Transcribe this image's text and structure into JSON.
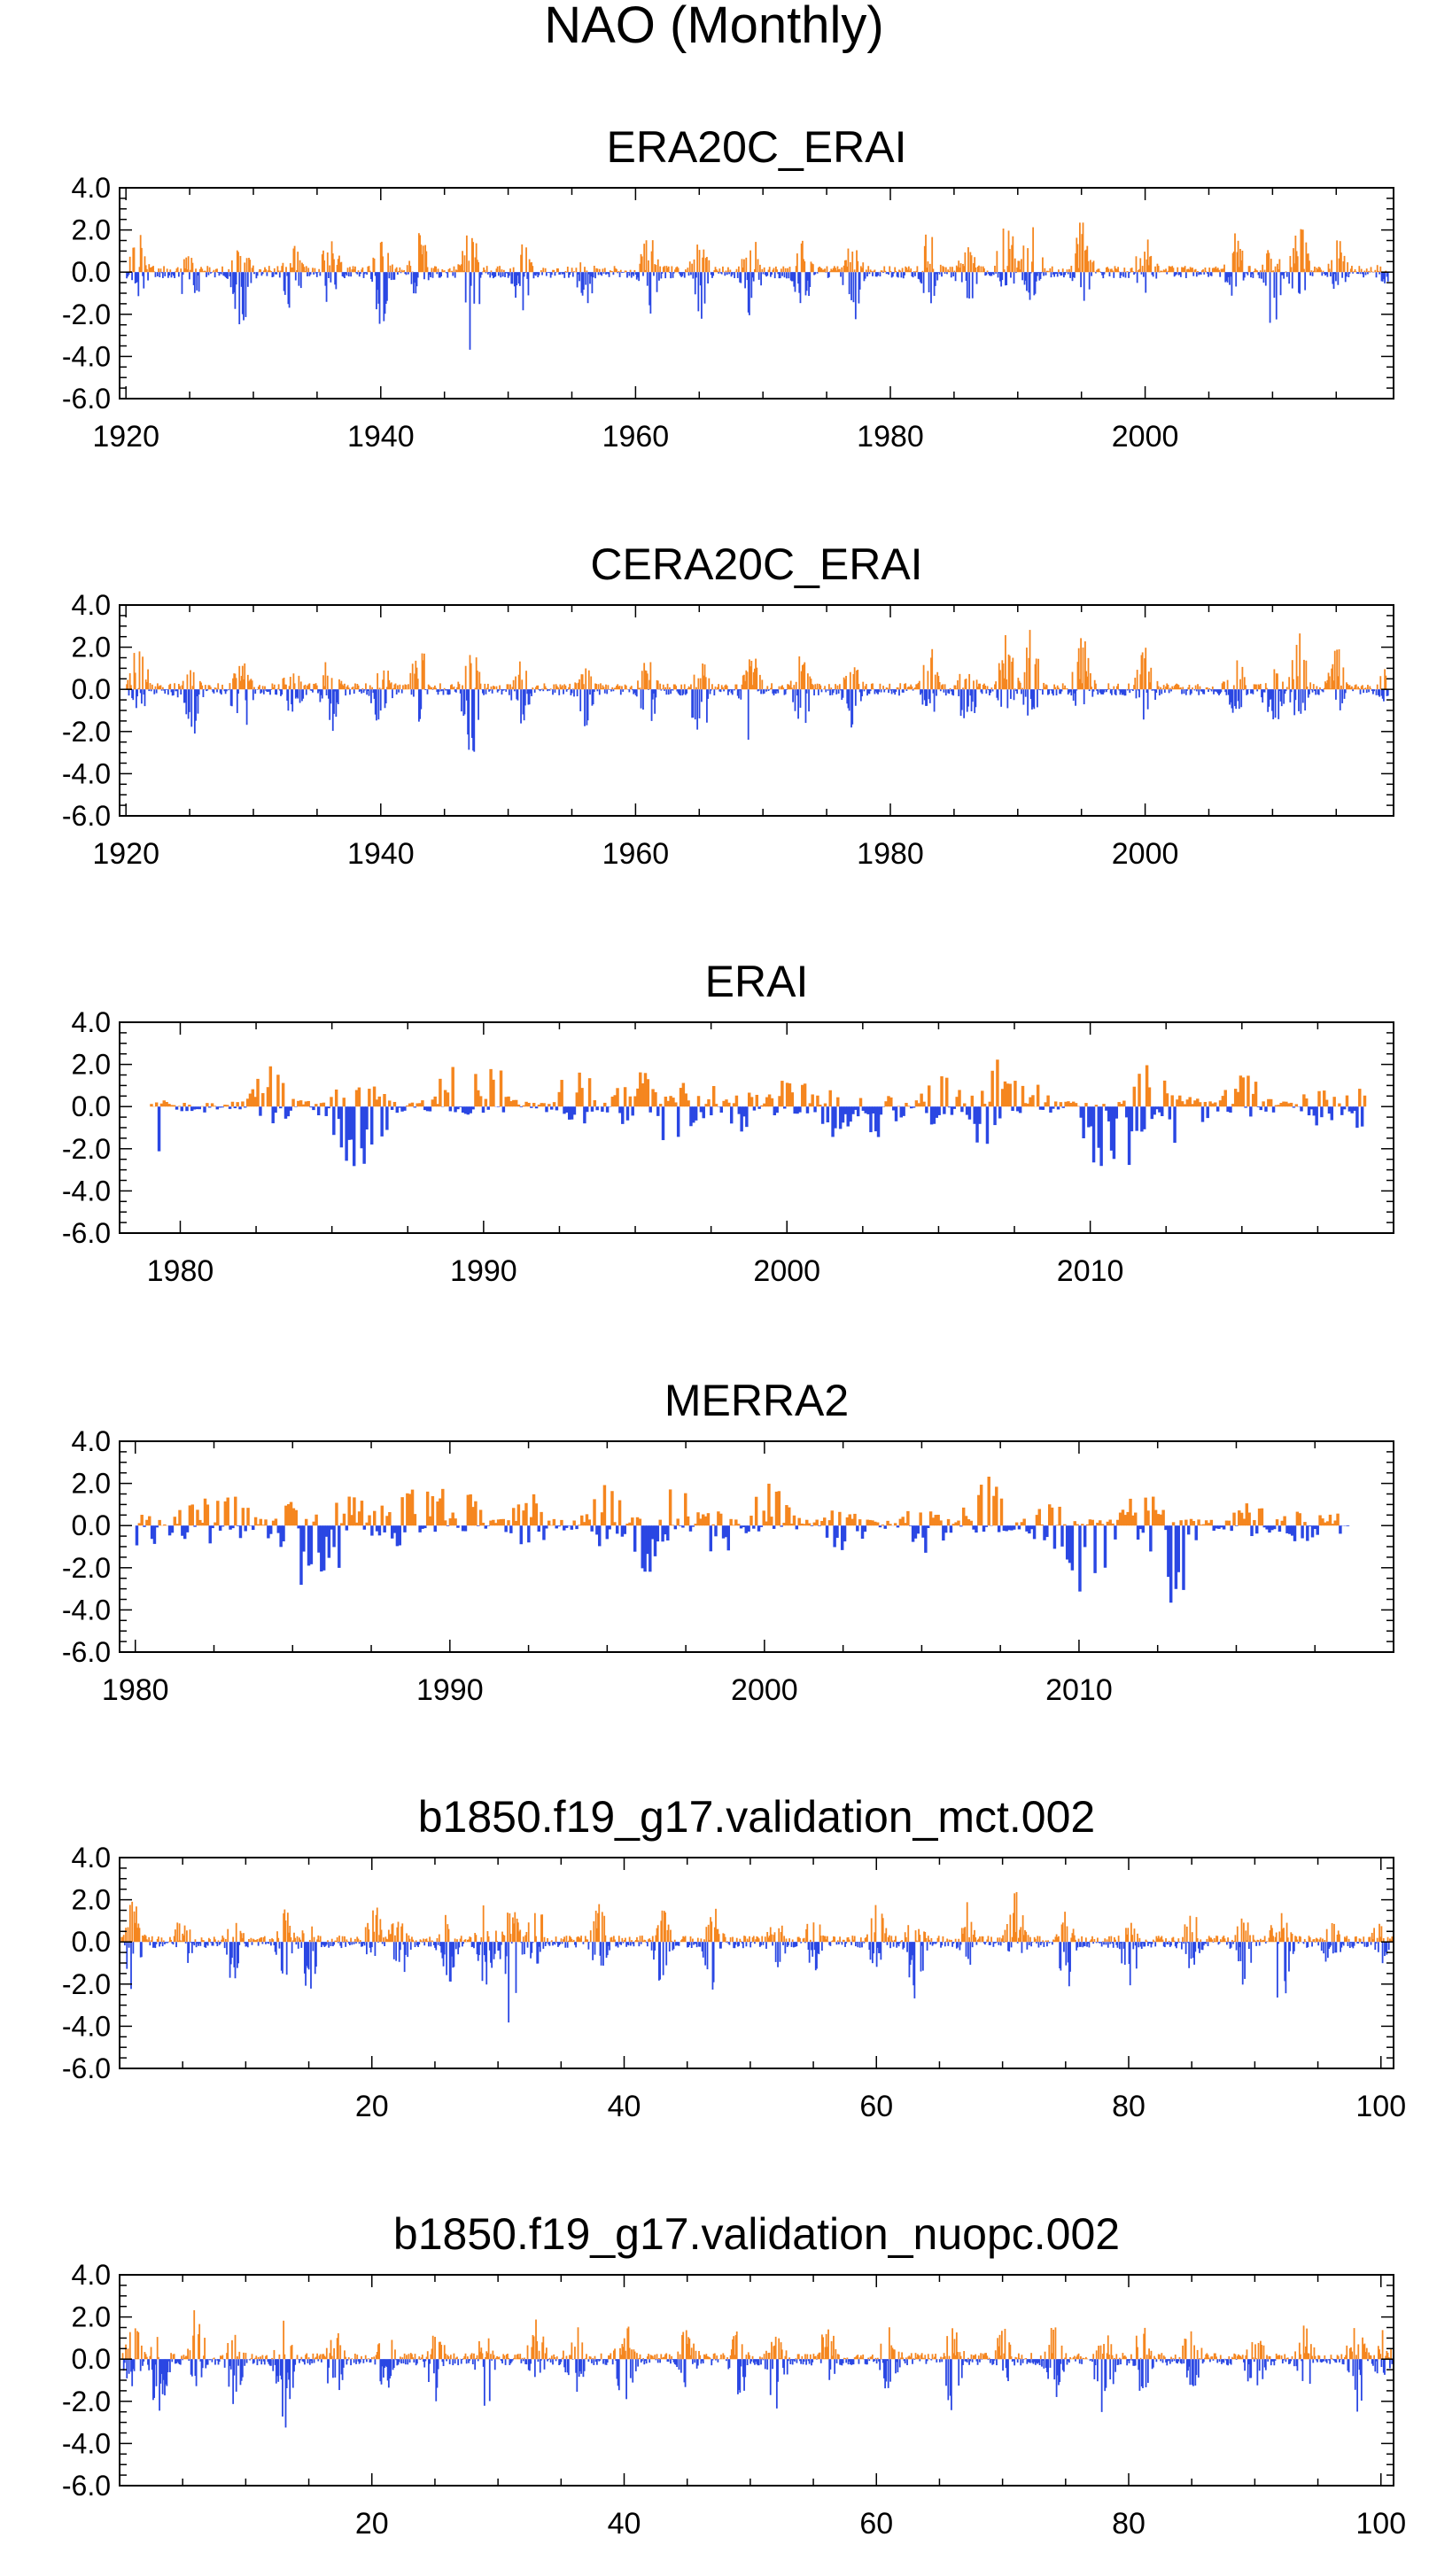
{
  "figure_title": "NAO (Monthly)",
  "colors": {
    "positive": "#f5861f",
    "negative": "#2a47e3",
    "axis": "#000000"
  },
  "chart_data": [
    {
      "type": "bar",
      "title": "ERA20C_ERAI",
      "xlabel": "",
      "ylabel": "",
      "ylim": [
        -6.0,
        4.0
      ],
      "yticks": [
        "4.0",
        "2.0",
        "0.0",
        "-2.0",
        "-4.0",
        "-6.0"
      ],
      "xlim": [
        1919.5,
        2019.5
      ],
      "xticks": [
        1920,
        1940,
        1960,
        1980,
        2000
      ],
      "x_start": 1920,
      "x_end": 2019,
      "series_resolution": "monthly (shown as annual-envelope sample)",
      "peaks": [
        [
          1921,
          2.5,
          -1.2
        ],
        [
          1925,
          1.2,
          -2.4
        ],
        [
          1929,
          1.6,
          -2.9
        ],
        [
          1933,
          1.4,
          -2.0
        ],
        [
          1936,
          1.9,
          -2.1
        ],
        [
          1940,
          1.5,
          -2.6
        ],
        [
          1943,
          2.1,
          -1.7
        ],
        [
          1947,
          2.2,
          -3.8
        ],
        [
          1951,
          1.7,
          -1.9
        ],
        [
          1956,
          1.4,
          -1.8
        ],
        [
          1961,
          1.8,
          -2.1
        ],
        [
          1965,
          1.6,
          -2.4
        ],
        [
          1969,
          2.0,
          -2.9
        ],
        [
          1973,
          1.7,
          -2.0
        ],
        [
          1977,
          1.6,
          -2.5
        ],
        [
          1983,
          2.1,
          -1.6
        ],
        [
          1986,
          1.5,
          -2.2
        ],
        [
          1989,
          3.1,
          -1.2
        ],
        [
          1991,
          3.0,
          -1.5
        ],
        [
          1995,
          2.7,
          -1.5
        ],
        [
          2000,
          2.2,
          -1.6
        ],
        [
          2007,
          2.0,
          -1.4
        ],
        [
          2010,
          1.5,
          -2.9
        ],
        [
          2012,
          2.7,
          -1.7
        ],
        [
          2015,
          2.0,
          -1.2
        ],
        [
          2019,
          1.3,
          -0.8
        ]
      ]
    },
    {
      "type": "bar",
      "title": "CERA20C_ERAI",
      "xlabel": "",
      "ylabel": "",
      "ylim": [
        -6.0,
        4.0
      ],
      "yticks": [
        "4.0",
        "2.0",
        "0.0",
        "-2.0",
        "-4.0",
        "-6.0"
      ],
      "xlim": [
        1919.5,
        2019.5
      ],
      "xticks": [
        1920,
        1940,
        1960,
        1980,
        2000
      ],
      "x_start": 1920,
      "x_end": 2019,
      "series_resolution": "monthly (shown as annual-envelope sample)",
      "peaks": [
        [
          1921,
          2.4,
          -1.2
        ],
        [
          1925,
          1.3,
          -2.6
        ],
        [
          1929,
          1.6,
          -2.8
        ],
        [
          1933,
          1.4,
          -2.0
        ],
        [
          1936,
          1.8,
          -2.1
        ],
        [
          1940,
          1.5,
          -2.6
        ],
        [
          1943,
          2.2,
          -1.7
        ],
        [
          1947,
          2.2,
          -3.7
        ],
        [
          1951,
          1.7,
          -1.9
        ],
        [
          1956,
          1.4,
          -1.8
        ],
        [
          1961,
          1.8,
          -2.1
        ],
        [
          1965,
          1.6,
          -3.0
        ],
        [
          1969,
          2.0,
          -2.8
        ],
        [
          1973,
          1.7,
          -2.0
        ],
        [
          1977,
          1.6,
          -2.5
        ],
        [
          1983,
          2.1,
          -1.6
        ],
        [
          1986,
          1.5,
          -2.2
        ],
        [
          1989,
          3.1,
          -1.2
        ],
        [
          1991,
          3.0,
          -1.5
        ],
        [
          1995,
          2.6,
          -1.5
        ],
        [
          2000,
          2.2,
          -1.6
        ],
        [
          2007,
          2.0,
          -1.4
        ],
        [
          2010,
          1.5,
          -3.0
        ],
        [
          2012,
          2.7,
          -1.8
        ],
        [
          2015,
          2.1,
          -1.2
        ],
        [
          2019,
          1.4,
          -0.8
        ]
      ]
    },
    {
      "type": "bar",
      "title": "ERAI",
      "xlabel": "",
      "ylabel": "",
      "ylim": [
        -6.0,
        4.0
      ],
      "yticks": [
        "4.0",
        "2.0",
        "0.0",
        "-2.0",
        "-4.0",
        "-6.0"
      ],
      "xlim": [
        1978.0,
        2020.0
      ],
      "xticks": [
        1980,
        1990,
        2000,
        2010
      ],
      "x_start": 1979,
      "x_end": 2019,
      "series_resolution": "monthly",
      "peaks": [
        [
          1979.1,
          0.5,
          -2.3
        ],
        [
          1983.0,
          2.1,
          -0.8
        ],
        [
          1985.5,
          1.2,
          -3.0
        ],
        [
          1986.2,
          1.0,
          -3.1
        ],
        [
          1989.1,
          2.5,
          -0.5
        ],
        [
          1990.1,
          2.7,
          -0.3
        ],
        [
          1993.0,
          2.0,
          -1.0
        ],
        [
          1995.0,
          2.1,
          -1.5
        ],
        [
          1996.1,
          0.6,
          -2.5
        ],
        [
          1997.1,
          2.3,
          -0.6
        ],
        [
          1998.7,
          0.8,
          -1.6
        ],
        [
          2000.1,
          1.7,
          -0.4
        ],
        [
          2001.5,
          0.9,
          -1.5
        ],
        [
          2003.0,
          1.1,
          -1.5
        ],
        [
          2005.1,
          1.6,
          -1.2
        ],
        [
          2006.5,
          0.8,
          -2.0
        ],
        [
          2007.1,
          2.6,
          -0.4
        ],
        [
          2008.0,
          1.3,
          -0.6
        ],
        [
          2010.1,
          0.2,
          -3.6
        ],
        [
          2011.0,
          0.3,
          -3.4
        ],
        [
          2012.0,
          2.4,
          -0.8
        ],
        [
          2013.1,
          0.5,
          -3.6
        ],
        [
          2015.0,
          1.7,
          -0.6
        ],
        [
          2017.5,
          1.1,
          -1.0
        ],
        [
          2019.0,
          1.0,
          -1.2
        ]
      ]
    },
    {
      "type": "bar",
      "title": "MERRA2",
      "xlabel": "",
      "ylabel": "",
      "ylim": [
        -6.0,
        4.0
      ],
      "yticks": [
        "4.0",
        "2.0",
        "0.0",
        "-2.0",
        "-4.0",
        "-6.0"
      ],
      "xlim": [
        1979.5,
        2020.0
      ],
      "xticks": [
        1980,
        1990,
        2000,
        2010
      ],
      "x_start": 1980,
      "x_end": 2018.5,
      "series_resolution": "monthly",
      "peaks": [
        [
          1980.3,
          0.6,
          -1.3
        ],
        [
          1982.0,
          1.6,
          -1.7
        ],
        [
          1983.0,
          1.9,
          -0.8
        ],
        [
          1985.1,
          1.3,
          -2.9
        ],
        [
          1986.0,
          0.8,
          -2.9
        ],
        [
          1986.7,
          2.0,
          -0.6
        ],
        [
          1988.0,
          1.1,
          -1.4
        ],
        [
          1989.0,
          2.6,
          -0.4
        ],
        [
          1990.1,
          2.7,
          -0.3
        ],
        [
          1992.5,
          1.6,
          -1.1
        ],
        [
          1995.0,
          2.0,
          -1.2
        ],
        [
          1996.1,
          0.5,
          -2.4
        ],
        [
          1997.0,
          2.3,
          -0.5
        ],
        [
          1998.5,
          0.9,
          -1.6
        ],
        [
          2000.1,
          2.2,
          -0.3
        ],
        [
          2002.5,
          1.0,
          -1.5
        ],
        [
          2005.0,
          1.2,
          -1.5
        ],
        [
          2007.0,
          2.4,
          -0.5
        ],
        [
          2009.0,
          1.1,
          -1.2
        ],
        [
          2010.1,
          0.3,
          -3.6
        ],
        [
          2011.0,
          0.3,
          -3.4
        ],
        [
          2012.0,
          2.2,
          -0.9
        ],
        [
          2013.0,
          0.6,
          -4.0
        ],
        [
          2015.5,
          1.4,
          -0.6
        ],
        [
          2017.0,
          1.0,
          -0.8
        ],
        [
          2018.3,
          0.7,
          -0.5
        ]
      ]
    },
    {
      "type": "bar",
      "title": "b1850.f19_g17.validation_mct.002",
      "xlabel": "",
      "ylabel": "",
      "ylim": [
        -6.0,
        4.0
      ],
      "yticks": [
        "4.0",
        "2.0",
        "0.0",
        "-2.0",
        "-4.0",
        "-6.0"
      ],
      "xlim": [
        0.0,
        101.0
      ],
      "xticks": [
        20,
        40,
        60,
        80,
        100
      ],
      "x_start": 0.1,
      "x_end": 100.9,
      "series_resolution": "monthly (shown as annual-envelope sample)",
      "peaks": [
        [
          1,
          2.1,
          -2.4
        ],
        [
          5,
          1.5,
          -1.3
        ],
        [
          9,
          1.3,
          -2.1
        ],
        [
          13,
          1.7,
          -2.4
        ],
        [
          15,
          1.0,
          -2.8
        ],
        [
          20,
          2.4,
          -1.0
        ],
        [
          22,
          1.6,
          -2.6
        ],
        [
          26,
          1.5,
          -2.3
        ],
        [
          29,
          1.9,
          -2.2
        ],
        [
          31,
          1.7,
          -4.5
        ],
        [
          33,
          2.0,
          -1.2
        ],
        [
          38,
          1.8,
          -1.5
        ],
        [
          43,
          1.6,
          -2.3
        ],
        [
          47,
          1.7,
          -2.4
        ],
        [
          52,
          1.3,
          -1.9
        ],
        [
          55,
          1.8,
          -1.4
        ],
        [
          60,
          1.8,
          -1.6
        ],
        [
          63,
          1.6,
          -2.9
        ],
        [
          67,
          2.0,
          -1.5
        ],
        [
          71,
          2.4,
          -1.8
        ],
        [
          75,
          1.6,
          -2.3
        ],
        [
          80,
          1.5,
          -2.5
        ],
        [
          85,
          1.7,
          -1.5
        ],
        [
          89,
          1.3,
          -2.2
        ],
        [
          92,
          2.4,
          -3.6
        ],
        [
          96,
          1.2,
          -1.4
        ],
        [
          100,
          1.3,
          -1.2
        ]
      ]
    },
    {
      "type": "bar",
      "title": "b1850.f19_g17.validation_nuopc.002",
      "xlabel": "",
      "ylabel": "",
      "ylim": [
        -6.0,
        4.0
      ],
      "yticks": [
        "4.0",
        "2.0",
        "0.0",
        "-2.0",
        "-4.0",
        "-6.0"
      ],
      "xlim": [
        0.0,
        101.0
      ],
      "xticks": [
        20,
        40,
        60,
        80,
        100
      ],
      "x_start": 0.1,
      "x_end": 100.9,
      "series_resolution": "monthly (shown as annual-envelope sample)",
      "peaks": [
        [
          1,
          1.8,
          -1.6
        ],
        [
          3,
          1.3,
          -3.3
        ],
        [
          6,
          2.5,
          -1.4
        ],
        [
          9,
          1.2,
          -2.2
        ],
        [
          13,
          2.0,
          -3.5
        ],
        [
          17,
          1.6,
          -2.1
        ],
        [
          21,
          1.9,
          -1.6
        ],
        [
          25,
          1.7,
          -2.3
        ],
        [
          29,
          1.5,
          -2.7
        ],
        [
          33,
          1.9,
          -1.4
        ],
        [
          36,
          2.0,
          -2.4
        ],
        [
          40,
          1.8,
          -2.6
        ],
        [
          45,
          1.7,
          -1.6
        ],
        [
          49,
          1.6,
          -2.2
        ],
        [
          52,
          1.5,
          -3.0
        ],
        [
          56,
          2.0,
          -1.5
        ],
        [
          61,
          1.9,
          -2.1
        ],
        [
          66,
          1.6,
          -2.6
        ],
        [
          70,
          2.1,
          -1.5
        ],
        [
          74,
          1.6,
          -2.0
        ],
        [
          78,
          1.4,
          -3.3
        ],
        [
          81,
          1.9,
          -1.8
        ],
        [
          85,
          2.2,
          -1.4
        ],
        [
          90,
          1.5,
          -2.3
        ],
        [
          94,
          1.7,
          -1.8
        ],
        [
          98,
          2.1,
          -2.7
        ],
        [
          100,
          1.4,
          -1.0
        ]
      ]
    }
  ]
}
